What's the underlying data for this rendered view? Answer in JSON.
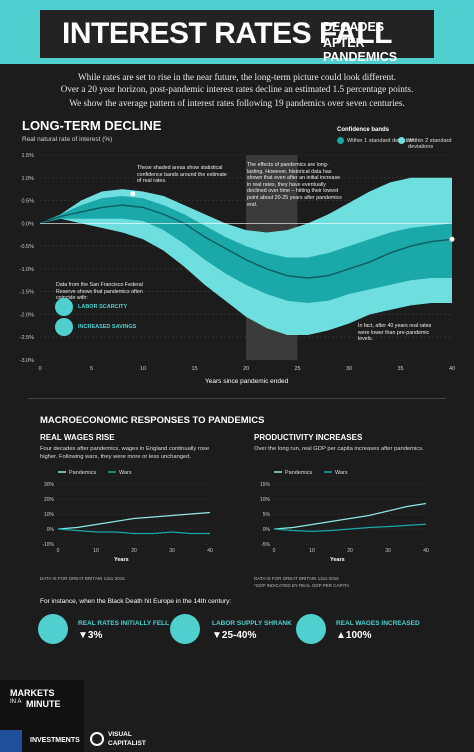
{
  "header": {
    "title": "INTEREST RATES FALL",
    "subtitle_line1": "DECADES",
    "subtitle_line2": "AFTER PANDEMICS",
    "accent": "#4fd0cf"
  },
  "intro": {
    "p1": "While rates are set to rise in the near future, the long-term picture could look different.",
    "p2": "Over a 20 year horizon, post-pandemic interest rates decline an estimated 1.5 percentage points.",
    "p3": "We show the average pattern of interest rates following 19 pandemics over seven centuries."
  },
  "main_chart": {
    "section_title": "LONG-TERM DECLINE",
    "ylabel": "Real natural rate of interest (%)",
    "xlabel": "Years since pandemic ended",
    "legend_title": "Confidence bands",
    "legend_inner": "Within 1 standard deviation",
    "legend_outer": "Within 2 standard deviations",
    "annotation_shaded": "These shaded areas show statistical confidence bands around the estimate of real rates.",
    "annotation_effects": "The effects of pandemics are long-lasting. However, historical data has shown that even after an initial increase in real rates, they have eventually declined over time – hitting their lowest point about 20-25 years after pandemics end.",
    "annotation_sf": "Data from the San Francisco Federal Reserve shows that pandemics often coincide with:",
    "tag_labor": "LABOR SCARCITY",
    "tag_savings": "INCREASED SAVINGS",
    "annotation_40": "In fact, after 40 years real rates were lower than pre-pandemic levels."
  },
  "chart_data": [
    {
      "type": "area",
      "title": "LONG-TERM DECLINE",
      "ylabel": "Real natural rate of interest (%)",
      "xlabel": "Years since pandemic ended",
      "ylim": [
        -3.0,
        1.5
      ],
      "xlim": [
        0,
        40
      ],
      "yticks": [
        "1.5%",
        "1.0%",
        "0.5%",
        "0.0%",
        "-0.5%",
        "-1.0%",
        "-1.5%",
        "-2.0%",
        "-2.5%",
        "-3.0%"
      ],
      "xticks": [
        "0",
        "5",
        "10",
        "15",
        "20",
        "25",
        "30",
        "35",
        "40"
      ],
      "x": [
        0,
        2,
        4,
        6,
        8,
        10,
        12,
        14,
        16,
        18,
        20,
        22,
        24,
        26,
        28,
        30,
        32,
        34,
        36,
        38,
        40
      ],
      "series": [
        {
          "name": "",
          "values": [
            0,
            0.15,
            0.25,
            0.35,
            0.4,
            0.35,
            0.2,
            0,
            -0.3,
            -0.55,
            -0.8,
            -1.0,
            -1.15,
            -1.2,
            -1.15,
            -1.0,
            -0.85,
            -0.65,
            -0.5,
            -0.4,
            -0.35
          ]
        }
      ],
      "band_1sd_upper": [
        0,
        0.2,
        0.4,
        0.55,
        0.6,
        0.55,
        0.4,
        0.2,
        -0.05,
        -0.3,
        -0.5,
        -0.65,
        -0.75,
        -0.75,
        -0.65,
        -0.5,
        -0.35,
        -0.2,
        -0.1,
        -0.05,
        0.0
      ],
      "band_1sd_lower": [
        0,
        0.1,
        0.1,
        0.1,
        0.1,
        0.05,
        -0.15,
        -0.45,
        -0.8,
        -1.1,
        -1.35,
        -1.55,
        -1.7,
        -1.75,
        -1.7,
        -1.55,
        -1.45,
        -1.35,
        -1.25,
        -1.2,
        -1.2
      ],
      "band_2sd_upper": [
        0,
        0.2,
        0.5,
        0.7,
        0.75,
        0.7,
        0.6,
        0.4,
        0.2,
        0.0,
        -0.15,
        -0.2,
        -0.15,
        0.0,
        0.2,
        0.45,
        0.7,
        0.9,
        1.0,
        1.0,
        1.0
      ],
      "band_2sd_lower": [
        0,
        0.1,
        0.0,
        -0.1,
        -0.2,
        -0.35,
        -0.6,
        -0.95,
        -1.35,
        -1.7,
        -2.05,
        -2.3,
        -2.45,
        -2.45,
        -2.35,
        -2.2,
        -2.0,
        -1.9,
        -1.8,
        -1.75,
        -1.75
      ],
      "shaded_region": [
        20,
        25
      ],
      "legend": [
        "Within 1 standard deviation",
        "Within 2 standard deviations"
      ],
      "legend_placement": "top-right"
    },
    {
      "type": "line",
      "title": "REAL WAGES RISE",
      "xlabel": "Years",
      "ylim": [
        -10,
        30
      ],
      "xticks": [
        "0",
        "10",
        "20",
        "30",
        "40"
      ],
      "yticks": [
        "30%",
        "20%",
        "10%",
        "0%",
        "-10%"
      ],
      "x": [
        0,
        5,
        10,
        15,
        20,
        25,
        30,
        35,
        40
      ],
      "series": [
        {
          "name": "Pandemics",
          "values": [
            0,
            1,
            3,
            5,
            7,
            8,
            9,
            10,
            11
          ]
        },
        {
          "name": "Wars",
          "values": [
            0,
            -1,
            -2,
            -2,
            -3,
            -3,
            -2,
            -3,
            -3
          ]
        }
      ],
      "legend_placement": "top-left"
    },
    {
      "type": "line",
      "title": "PRODUCTIVITY INCREASES",
      "xlabel": "Years",
      "ylim": [
        -5,
        15
      ],
      "xticks": [
        "0",
        "10",
        "20",
        "30",
        "40"
      ],
      "yticks": [
        "15%",
        "10%",
        "5%",
        "0%",
        "-5%"
      ],
      "x": [
        0,
        5,
        10,
        15,
        20,
        25,
        30,
        35,
        40
      ],
      "series": [
        {
          "name": "Pandemics",
          "values": [
            0,
            0.5,
            1.5,
            2.5,
            3.5,
            4.5,
            6,
            7.5,
            8.5
          ]
        },
        {
          "name": "Wars",
          "values": [
            0,
            -0.5,
            -0.8,
            -0.5,
            0,
            0.5,
            0.8,
            1.2,
            1.6
          ]
        }
      ],
      "legend_placement": "top-left"
    }
  ],
  "macro": {
    "section_title": "MACROECONOMIC RESPONSES TO PANDEMICS",
    "wages_title": "REAL WAGES RISE",
    "wages_desc": "Four decades after pandemics, wages in England continually rose higher. Following wars, they were more or less unchanged.",
    "wages_source": "DATA IS FOR GREAT BRITAIN 1311-2016",
    "prod_title": "PRODUCTIVITY INCREASES",
    "prod_desc": "Over the long run, real GDP per capita increases after pandemics.",
    "prod_source1": "DATA IS FOR GREAT BRITAIN 1311-2016",
    "prod_source2": "*GDP INDICATED BY REAL GDP PER CAPITA",
    "legend_pandemics": "Pandemics",
    "legend_wars": "Wars",
    "years_label": "Years"
  },
  "black_death": {
    "intro": "For instance, when the Black Death hit Europe in the 14th century:",
    "stat1_label": "REAL RATES INITIALLY FELL",
    "stat1_value": "▼3%",
    "stat2_label": "LABOR SUPPLY SHRANK",
    "stat2_value": "▼25-40%",
    "stat3_label": "REAL WAGES INCREASED",
    "stat3_value": "▲100%"
  },
  "footer": {
    "brand_line1": "MARKETS",
    "brand_line2": "IN A",
    "brand_line3": "MINUTE",
    "investments": "INVESTMENTS",
    "visual": "VISUAL",
    "capitalist": "CAPITALIST"
  }
}
